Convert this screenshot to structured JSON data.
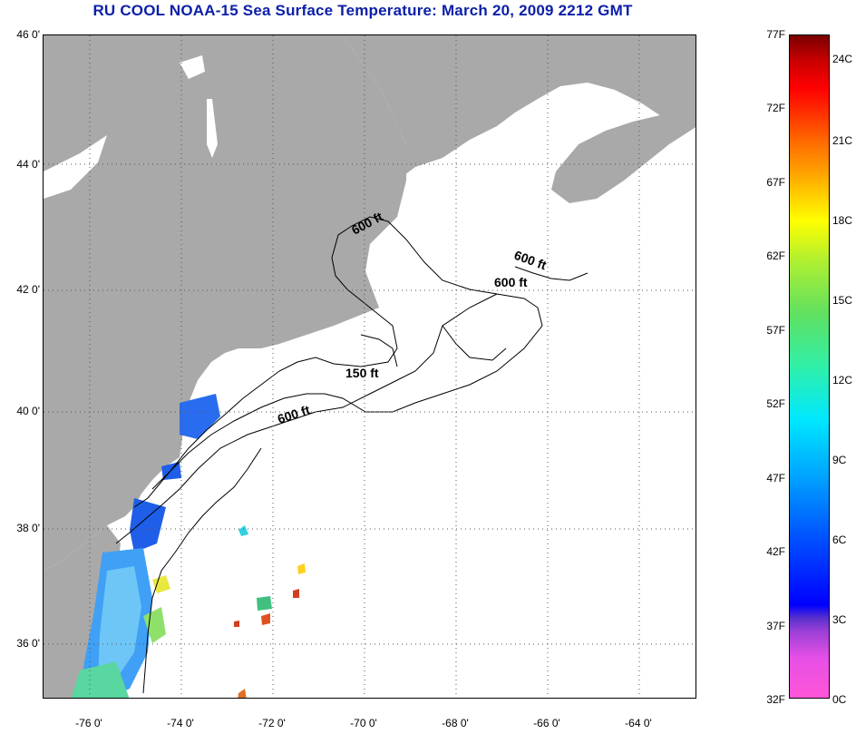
{
  "title": "RU COOL  NOAA-15  Sea Surface Temperature:  March 20, 2009 2212 GMT",
  "lat_labels": [
    "46 0'",
    "44 0'",
    "42 0'",
    "40 0'",
    "38 0'",
    "36 0'"
  ],
  "lon_labels": [
    "-76 0'",
    "-74 0'",
    "-72 0'",
    "-70 0'",
    "-68 0'",
    "-66 0'",
    "-64 0'"
  ],
  "contour_labels": [
    "600 ft",
    "600 ft",
    "600 ft",
    "150 ft",
    "600 ft"
  ],
  "colorbar_f": [
    "77F",
    "72F",
    "67F",
    "62F",
    "57F",
    "52F",
    "47F",
    "42F",
    "37F",
    "32F"
  ],
  "colorbar_c": [
    "24C",
    "21C",
    "18C",
    "15C",
    "12C",
    "9C",
    "6C",
    "3C",
    "0C"
  ],
  "colors": {
    "land": "#a9a9a9",
    "title": "#0b1fa8",
    "ocean_nodata": "#ffffff"
  }
}
